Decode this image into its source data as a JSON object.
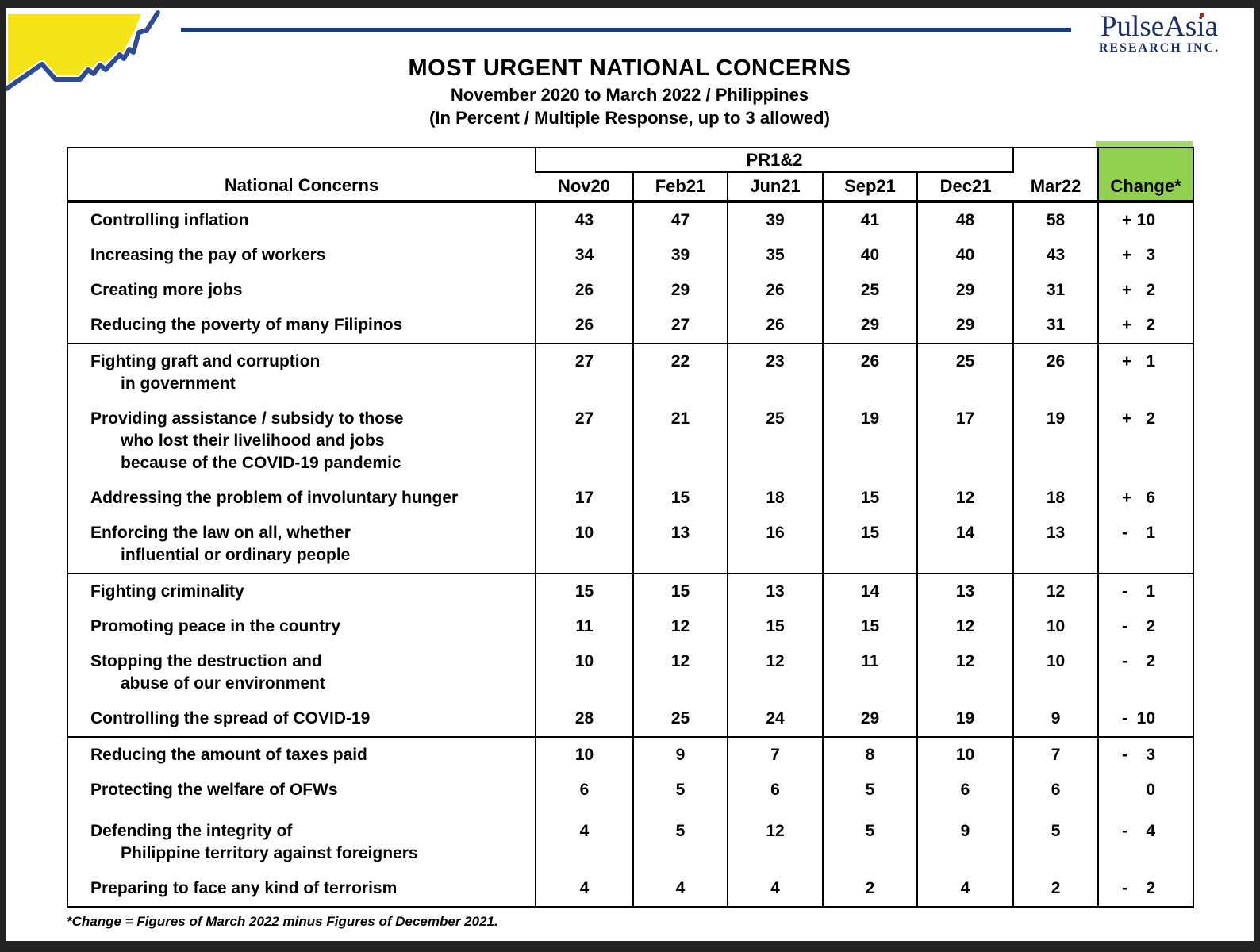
{
  "brand": {
    "company_line1": "PulseAsia",
    "company_line1_a": "PulseAs",
    "company_line1_b": "ia",
    "company_line2": "RESEARCH INC.",
    "colors": {
      "navy_text": "#1b2f6e",
      "rule_navy": "#123c8c",
      "logo_yellow": "#f6e41b",
      "logo_blue": "#2e4c94",
      "accent_green": "#92d050",
      "red_dot": "#b22222"
    }
  },
  "header": {
    "title": "MOST URGENT NATIONAL CONCERNS",
    "subtitle1": "November 2020 to March 2022 / Philippines",
    "subtitle2": "(In Percent / Multiple Response, up to 3 allowed)"
  },
  "table": {
    "concerns_header": "National Concerns",
    "group_header": "PR1&2",
    "columns": [
      "Nov20",
      "Feb21",
      "Jun21",
      "Sep21",
      "Dec21",
      "Mar22",
      "Change*"
    ],
    "rows": [
      {
        "concern_lines": [
          "Controlling inflation"
        ],
        "values": [
          43,
          47,
          39,
          41,
          48,
          58
        ],
        "change": "+10",
        "group_start": true
      },
      {
        "concern_lines": [
          "Increasing the pay of workers"
        ],
        "values": [
          34,
          39,
          35,
          40,
          40,
          43
        ],
        "change": "+ 3",
        "group_start": false
      },
      {
        "concern_lines": [
          "Creating more jobs"
        ],
        "values": [
          26,
          29,
          26,
          25,
          29,
          31
        ],
        "change": "+ 2",
        "group_start": false
      },
      {
        "concern_lines": [
          "Reducing the poverty of many Filipinos"
        ],
        "values": [
          26,
          27,
          26,
          29,
          29,
          31
        ],
        "change": "+ 2",
        "group_start": false
      },
      {
        "concern_lines": [
          "Fighting graft and corruption",
          "in government"
        ],
        "values": [
          27,
          22,
          23,
          26,
          25,
          26
        ],
        "change": "+ 1",
        "group_start": true
      },
      {
        "concern_lines": [
          "Providing assistance / subsidy to those",
          "who lost their livelihood and jobs",
          "because of the COVID-19 pandemic"
        ],
        "values": [
          27,
          21,
          25,
          19,
          17,
          19
        ],
        "change": "+ 2",
        "group_start": false
      },
      {
        "concern_lines": [
          "Addressing the problem of involuntary hunger"
        ],
        "values": [
          17,
          15,
          18,
          15,
          12,
          18
        ],
        "change": "+ 6",
        "group_start": false
      },
      {
        "concern_lines": [
          "Enforcing the law on all, whether",
          "influential or ordinary people"
        ],
        "values": [
          10,
          13,
          16,
          15,
          14,
          13
        ],
        "change": "- 1",
        "group_start": false
      },
      {
        "concern_lines": [
          "Fighting criminality"
        ],
        "values": [
          15,
          15,
          13,
          14,
          13,
          12
        ],
        "change": "- 1",
        "group_start": true
      },
      {
        "concern_lines": [
          "Promoting peace in the country"
        ],
        "values": [
          11,
          12,
          15,
          15,
          12,
          10
        ],
        "change": "- 2",
        "group_start": false
      },
      {
        "concern_lines": [
          "Stopping the destruction and",
          "abuse of our environment"
        ],
        "values": [
          10,
          12,
          12,
          11,
          12,
          10
        ],
        "change": "- 2",
        "group_start": false
      },
      {
        "concern_lines": [
          "Controlling the spread of COVID-19"
        ],
        "values": [
          28,
          25,
          24,
          29,
          19,
          9
        ],
        "change": "- 10",
        "group_start": false
      },
      {
        "concern_lines": [
          "Reducing the amount of taxes paid"
        ],
        "values": [
          10,
          9,
          7,
          8,
          10,
          7
        ],
        "change": "- 3",
        "group_start": true
      },
      {
        "concern_lines": [
          "Protecting the welfare of OFWs"
        ],
        "values": [
          6,
          5,
          6,
          5,
          6,
          6
        ],
        "change": "0",
        "group_start": false
      },
      {
        "concern_lines": [
          "Defending the integrity of",
          "Philippine territory against foreigners"
        ],
        "values": [
          4,
          5,
          12,
          5,
          9,
          5
        ],
        "change": "- 4",
        "group_start": false
      },
      {
        "concern_lines": [
          "Preparing to face any kind of terrorism"
        ],
        "values": [
          4,
          4,
          4,
          2,
          4,
          2
        ],
        "change": "- 2",
        "group_start": false
      }
    ]
  },
  "footnote": "*Change = Figures of March 2022 minus Figures of December 2021.",
  "chart_data": {
    "type": "table",
    "title": "MOST URGENT NATIONAL CONCERNS",
    "subtitle": "November 2020 to March 2022 / Philippines (In Percent / Multiple Response, up to 3 allowed)",
    "columns": [
      "Nov20",
      "Feb21",
      "Jun21",
      "Sep21",
      "Dec21",
      "Mar22",
      "Change*"
    ],
    "row_labels": [
      "Controlling inflation",
      "Increasing the pay of workers",
      "Creating more jobs",
      "Reducing the poverty of many Filipinos",
      "Fighting graft and corruption in government",
      "Providing assistance / subsidy to those who lost their livelihood and jobs because of the COVID-19 pandemic",
      "Addressing the problem of involuntary hunger",
      "Enforcing the law on all, whether influential or ordinary people",
      "Fighting criminality",
      "Promoting peace in the country",
      "Stopping the destruction and abuse of our environment",
      "Controlling the spread of COVID-19",
      "Reducing the amount of taxes paid",
      "Protecting the welfare of OFWs",
      "Defending the integrity of Philippine territory against foreigners",
      "Preparing to face any kind of terrorism"
    ],
    "values": [
      [
        43,
        47,
        39,
        41,
        48,
        58,
        10
      ],
      [
        34,
        39,
        35,
        40,
        40,
        43,
        3
      ],
      [
        26,
        29,
        26,
        25,
        29,
        31,
        2
      ],
      [
        26,
        27,
        26,
        29,
        29,
        31,
        2
      ],
      [
        27,
        22,
        23,
        26,
        25,
        26,
        1
      ],
      [
        27,
        21,
        25,
        19,
        17,
        19,
        2
      ],
      [
        17,
        15,
        18,
        15,
        12,
        18,
        6
      ],
      [
        10,
        13,
        16,
        15,
        14,
        13,
        -1
      ],
      [
        15,
        15,
        13,
        14,
        13,
        12,
        -1
      ],
      [
        11,
        12,
        15,
        15,
        12,
        10,
        -2
      ],
      [
        10,
        12,
        12,
        11,
        12,
        10,
        -2
      ],
      [
        28,
        25,
        24,
        29,
        19,
        9,
        -10
      ],
      [
        10,
        9,
        7,
        8,
        10,
        7,
        -3
      ],
      [
        6,
        5,
        6,
        5,
        6,
        6,
        0
      ],
      [
        4,
        5,
        12,
        5,
        9,
        5,
        -4
      ],
      [
        4,
        4,
        4,
        2,
        4,
        2,
        -2
      ]
    ],
    "notes": "*Change = Figures of March 2022 minus Figures of December 2021."
  }
}
